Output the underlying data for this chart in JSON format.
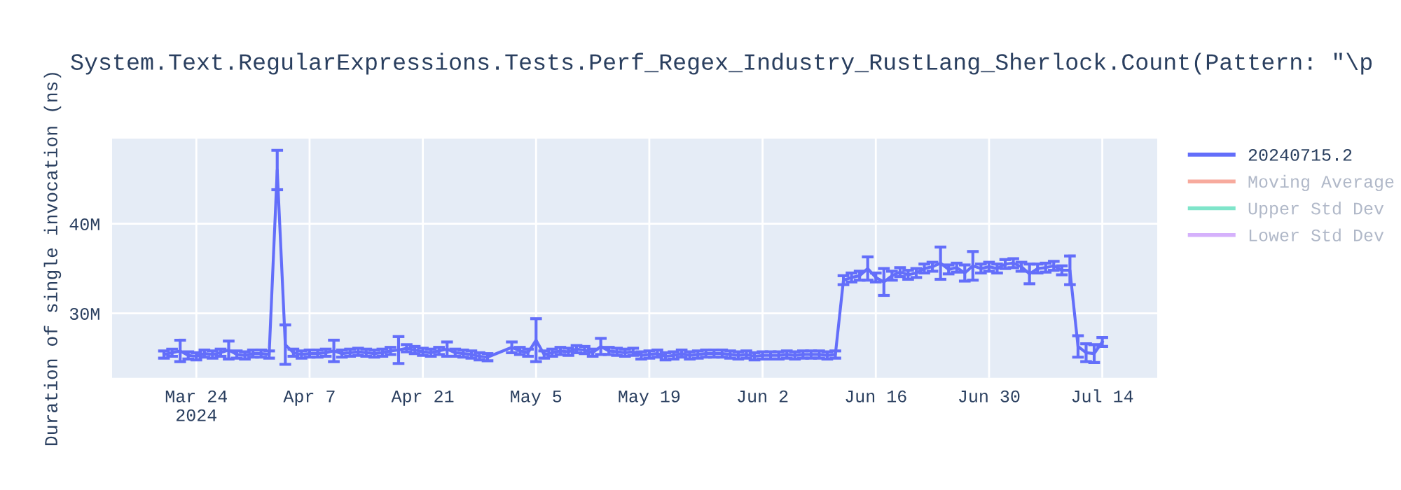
{
  "chart_data": {
    "type": "line",
    "title": "System.Text.RegularExpressions.Tests.Perf_Regex_Industry_RustLang_Sherlock.Count(Pattern: \"\\p",
    "ylabel": "Duration of single invocation (ns)",
    "x": [
      "2024-03-20",
      "2024-03-21",
      "2024-03-22",
      "2024-03-23",
      "2024-03-24",
      "2024-03-25",
      "2024-03-26",
      "2024-03-27",
      "2024-03-28",
      "2024-03-29",
      "2024-03-30",
      "2024-03-31",
      "2024-04-01",
      "2024-04-02",
      "2024-04-03",
      "2024-04-04",
      "2024-04-05",
      "2024-04-06",
      "2024-04-07",
      "2024-04-08",
      "2024-04-09",
      "2024-04-10",
      "2024-04-11",
      "2024-04-12",
      "2024-04-13",
      "2024-04-14",
      "2024-04-15",
      "2024-04-16",
      "2024-04-17",
      "2024-04-18",
      "2024-04-19",
      "2024-04-20",
      "2024-04-21",
      "2024-04-22",
      "2024-04-23",
      "2024-04-24",
      "2024-04-25",
      "2024-04-26",
      "2024-04-27",
      "2024-04-28",
      "2024-04-29",
      "2024-05-02",
      "2024-05-03",
      "2024-05-04",
      "2024-05-05",
      "2024-05-06",
      "2024-05-07",
      "2024-05-08",
      "2024-05-09",
      "2024-05-10",
      "2024-05-11",
      "2024-05-12",
      "2024-05-13",
      "2024-05-14",
      "2024-05-15",
      "2024-05-16",
      "2024-05-17",
      "2024-05-18",
      "2024-05-19",
      "2024-05-20",
      "2024-05-21",
      "2024-05-22",
      "2024-05-23",
      "2024-05-24",
      "2024-05-25",
      "2024-05-26",
      "2024-05-27",
      "2024-05-28",
      "2024-05-29",
      "2024-05-30",
      "2024-05-31",
      "2024-06-01",
      "2024-06-02",
      "2024-06-03",
      "2024-06-04",
      "2024-06-05",
      "2024-06-06",
      "2024-06-07",
      "2024-06-08",
      "2024-06-09",
      "2024-06-10",
      "2024-06-11",
      "2024-06-12",
      "2024-06-13",
      "2024-06-14",
      "2024-06-15",
      "2024-06-16",
      "2024-06-17",
      "2024-06-18",
      "2024-06-19",
      "2024-06-20",
      "2024-06-21",
      "2024-06-22",
      "2024-06-23",
      "2024-06-24",
      "2024-06-25",
      "2024-06-26",
      "2024-06-27",
      "2024-06-28",
      "2024-06-29",
      "2024-06-30",
      "2024-07-01",
      "2024-07-02",
      "2024-07-03",
      "2024-07-04",
      "2024-07-05",
      "2024-07-06",
      "2024-07-07",
      "2024-07-08",
      "2024-07-09",
      "2024-07-10",
      "2024-07-11",
      "2024-07-12",
      "2024-07-13",
      "2024-07-14"
    ],
    "series": [
      {
        "name": "20240715.2",
        "color": "#636efa",
        "values": [
          25400000,
          25600000,
          25800000,
          25300000,
          25200000,
          25500000,
          25400000,
          25600000,
          25900000,
          25400000,
          25300000,
          25500000,
          25500000,
          25400000,
          46000000,
          26500000,
          25600000,
          25400000,
          25500000,
          25500000,
          25600000,
          25800000,
          25500000,
          25600000,
          25700000,
          25600000,
          25500000,
          25600000,
          25800000,
          25900000,
          26100000,
          25900000,
          25700000,
          25600000,
          25800000,
          26000000,
          25600000,
          25500000,
          25400000,
          25200000,
          25100000,
          26200000,
          25800000,
          25600000,
          27000000,
          25400000,
          25600000,
          25800000,
          25700000,
          26000000,
          25900000,
          25600000,
          26300000,
          25800000,
          25700000,
          25600000,
          25700000,
          25300000,
          25400000,
          25500000,
          25200000,
          25300000,
          25500000,
          25300000,
          25400000,
          25500000,
          25500000,
          25500000,
          25400000,
          25300000,
          25400000,
          25200000,
          25300000,
          25300000,
          25300000,
          25400000,
          25300000,
          25400000,
          25400000,
          25400000,
          25300000,
          25400000,
          33700000,
          34000000,
          34200000,
          35000000,
          34000000,
          33500000,
          34200000,
          34600000,
          34300000,
          34500000,
          35000000,
          35200000,
          35600000,
          34900000,
          35100000,
          34500000,
          35300000,
          35000000,
          35200000,
          35000000,
          35500000,
          35600000,
          35200000,
          34400000,
          35000000,
          35100000,
          35300000,
          34800000,
          34800000,
          26300000,
          25600000,
          25500000,
          26800000
        ],
        "errors": [
          400000,
          400000,
          1200000,
          400000,
          400000,
          400000,
          400000,
          400000,
          1000000,
          400000,
          400000,
          400000,
          400000,
          400000,
          2200000,
          2200000,
          400000,
          400000,
          400000,
          400000,
          400000,
          1200000,
          400000,
          400000,
          400000,
          400000,
          400000,
          400000,
          400000,
          1500000,
          400000,
          400000,
          400000,
          400000,
          400000,
          800000,
          400000,
          400000,
          400000,
          400000,
          400000,
          600000,
          400000,
          400000,
          2400000,
          400000,
          400000,
          400000,
          400000,
          400000,
          400000,
          400000,
          900000,
          400000,
          400000,
          400000,
          400000,
          400000,
          400000,
          400000,
          400000,
          400000,
          400000,
          400000,
          400000,
          400000,
          400000,
          400000,
          400000,
          400000,
          400000,
          400000,
          400000,
          400000,
          400000,
          400000,
          400000,
          400000,
          400000,
          400000,
          400000,
          400000,
          500000,
          500000,
          500000,
          1300000,
          500000,
          1500000,
          500000,
          500000,
          500000,
          500000,
          500000,
          500000,
          1800000,
          500000,
          500000,
          900000,
          1600000,
          500000,
          500000,
          500000,
          500000,
          500000,
          500000,
          1100000,
          500000,
          500000,
          500000,
          500000,
          1600000,
          1200000,
          1000000,
          1000000,
          500000
        ]
      },
      {
        "name": "Moving Average",
        "color": "#ef553b",
        "values": [
          null,
          null,
          null,
          null,
          null,
          null,
          null,
          null,
          null,
          null,
          null,
          null,
          null,
          null,
          null,
          null,
          null,
          null,
          null,
          null,
          null,
          null,
          null,
          null,
          null,
          null,
          null,
          null,
          null,
          null,
          null,
          null,
          null,
          null,
          null,
          null,
          null,
          null,
          null,
          null,
          null,
          null,
          null,
          null,
          null,
          null,
          null,
          null,
          null,
          null,
          null,
          null,
          null,
          null,
          null,
          null,
          null,
          null,
          null,
          null,
          null,
          null,
          null,
          null,
          null,
          null,
          null,
          null,
          null,
          null,
          null,
          null,
          null,
          null,
          null,
          null,
          null,
          null,
          null,
          null,
          null,
          null,
          null,
          null,
          null,
          null,
          null,
          null,
          null,
          null,
          null,
          null,
          null,
          null,
          null,
          null,
          null,
          null,
          null,
          null,
          null,
          null,
          null,
          null,
          null,
          null,
          null,
          null,
          null,
          null,
          null,
          null,
          null,
          null,
          null
        ]
      },
      {
        "name": "Upper Std Dev",
        "color": "#00cc96",
        "values": [
          null,
          null,
          null,
          null,
          null,
          null,
          null,
          null,
          null,
          null,
          null,
          null,
          null,
          null,
          null,
          null,
          null,
          null,
          null,
          null,
          null,
          null,
          null,
          null,
          null,
          null,
          null,
          null,
          null,
          null,
          null,
          null,
          null,
          null,
          null,
          null,
          null,
          null,
          null,
          null,
          null,
          null,
          null,
          null,
          null,
          null,
          null,
          null,
          null,
          null,
          null,
          null,
          null,
          null,
          null,
          null,
          null,
          null,
          null,
          null,
          null,
          null,
          null,
          null,
          null,
          null,
          null,
          null,
          null,
          null,
          null,
          null,
          null,
          null,
          null,
          null,
          null,
          null,
          null,
          null,
          null,
          null,
          null,
          null,
          null,
          null,
          null,
          null,
          null,
          null,
          null,
          null,
          null,
          null,
          null,
          null,
          null,
          null,
          null,
          null,
          null,
          null,
          null,
          null,
          null,
          null,
          null,
          null,
          null,
          null,
          null,
          null,
          null,
          null,
          null
        ]
      },
      {
        "name": "Lower Std Dev",
        "color": "#ab63fa",
        "values": [
          null,
          null,
          null,
          null,
          null,
          null,
          null,
          null,
          null,
          null,
          null,
          null,
          null,
          null,
          null,
          null,
          null,
          null,
          null,
          null,
          null,
          null,
          null,
          null,
          null,
          null,
          null,
          null,
          null,
          null,
          null,
          null,
          null,
          null,
          null,
          null,
          null,
          null,
          null,
          null,
          null,
          null,
          null,
          null,
          null,
          null,
          null,
          null,
          null,
          null,
          null,
          null,
          null,
          null,
          null,
          null,
          null,
          null,
          null,
          null,
          null,
          null,
          null,
          null,
          null,
          null,
          null,
          null,
          null,
          null,
          null,
          null,
          null,
          null,
          null,
          null,
          null,
          null,
          null,
          null,
          null,
          null,
          null,
          null,
          null,
          null,
          null,
          null,
          null,
          null,
          null,
          null,
          null,
          null,
          null,
          null,
          null,
          null,
          null,
          null,
          null,
          null,
          null,
          null,
          null,
          null,
          null,
          null,
          null,
          null,
          null,
          null,
          null,
          null,
          null
        ]
      }
    ],
    "xlim": [
      "2024-03-13T14:00",
      "2024-07-20T19:00"
    ],
    "xticks": [
      {
        "value": "2024-03-24",
        "label": "Mar 24\n2024"
      },
      {
        "value": "2024-04-07",
        "label": "Apr 7"
      },
      {
        "value": "2024-04-21",
        "label": "Apr 21"
      },
      {
        "value": "2024-05-05",
        "label": "May 5"
      },
      {
        "value": "2024-05-19",
        "label": "May 19"
      },
      {
        "value": "2024-06-02",
        "label": "Jun 2"
      },
      {
        "value": "2024-06-16",
        "label": "Jun 16"
      },
      {
        "value": "2024-06-30",
        "label": "Jun 30"
      },
      {
        "value": "2024-07-14",
        "label": "Jul 14"
      }
    ],
    "ylim": [
      22800000,
      49500000
    ],
    "yticks": [
      {
        "value": 30000000,
        "label": "30M"
      },
      {
        "value": 40000000,
        "label": "40M"
      }
    ],
    "grid": true,
    "legend": "top right",
    "marker": "none",
    "line_style": "solid"
  }
}
